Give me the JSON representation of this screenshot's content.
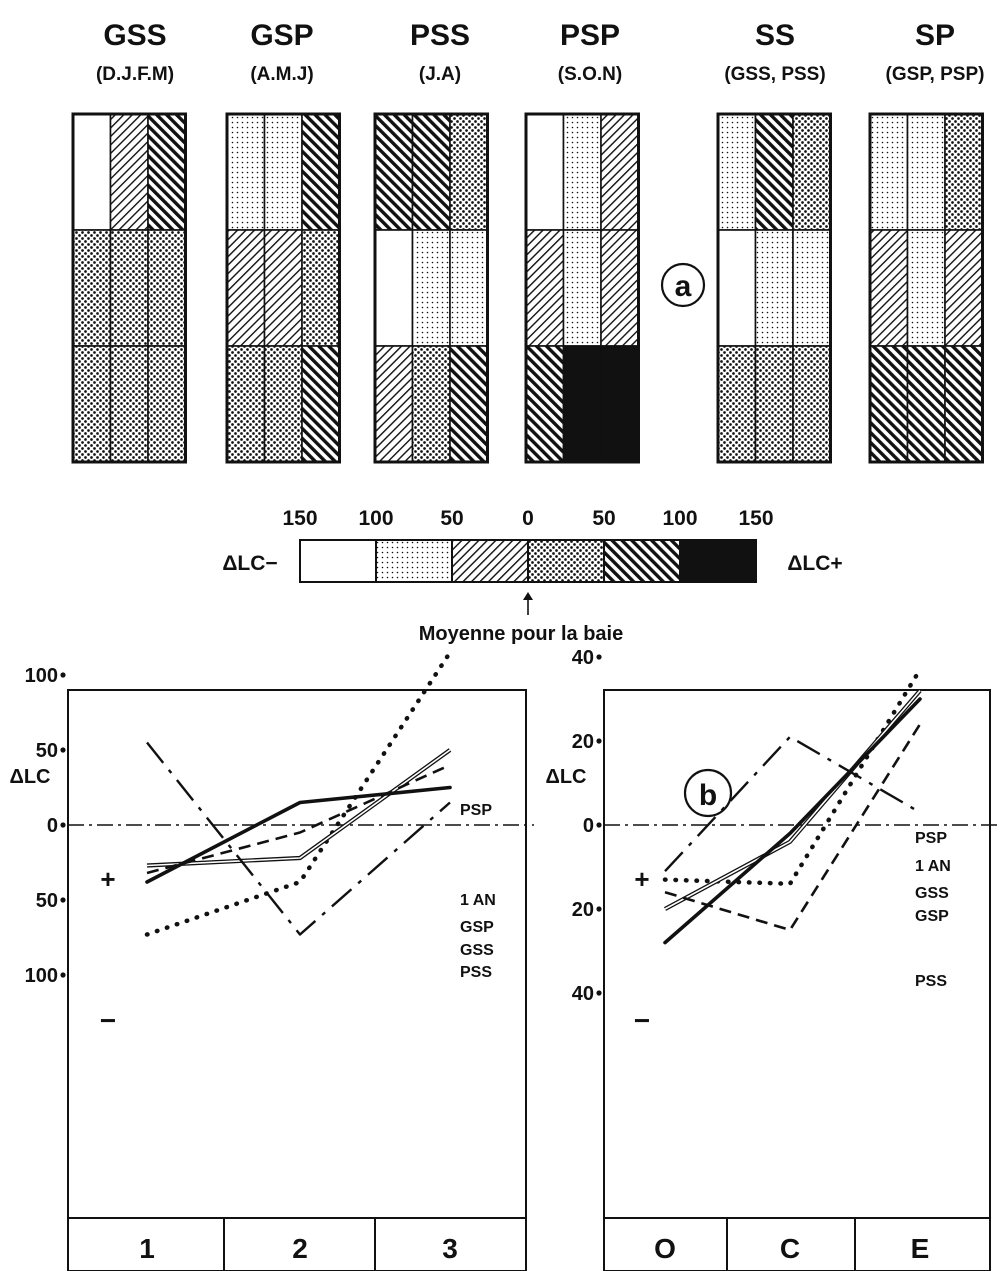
{
  "panel_a": {
    "badge": "a",
    "groups": [
      {
        "name": "GSS",
        "period": "(D.J.F.M)",
        "cells": [
          [
            "white",
            "hatch-light",
            "hatch-dense"
          ],
          [
            "dots-dense",
            "dots-dense",
            "dots-dense"
          ],
          [
            "dots-dense",
            "dots-dense",
            "dots-dense"
          ]
        ]
      },
      {
        "name": "GSP",
        "period": "(A.M.J)",
        "cells": [
          [
            "dots-light",
            "dots-light",
            "hatch-dense"
          ],
          [
            "hatch-light",
            "hatch-light",
            "dots-dense"
          ],
          [
            "dots-dense",
            "dots-dense",
            "hatch-dense"
          ]
        ]
      },
      {
        "name": "PSS",
        "period": "(J.A)",
        "cells": [
          [
            "hatch-dense",
            "hatch-dense",
            "dots-dense"
          ],
          [
            "white",
            "dots-light",
            "dots-light"
          ],
          [
            "hatch-light",
            "dots-dense",
            "hatch-dense"
          ]
        ]
      },
      {
        "name": "PSP",
        "period": "(S.O.N)",
        "cells": [
          [
            "white",
            "dots-light",
            "hatch-light"
          ],
          [
            "hatch-light",
            "dots-light",
            "hatch-light"
          ],
          [
            "hatch-dense",
            "black",
            "black"
          ]
        ]
      },
      {
        "name": "SS",
        "period": "(GSS, PSS)",
        "cells": [
          [
            "dots-light",
            "hatch-dense",
            "dots-dense"
          ],
          [
            "white",
            "dots-light",
            "dots-light"
          ],
          [
            "dots-dense",
            "dots-dense",
            "dots-dense"
          ]
        ]
      },
      {
        "name": "SP",
        "period": "(GSP, PSP)",
        "cells": [
          [
            "dots-light",
            "dots-light",
            "dots-dense"
          ],
          [
            "hatch-light",
            "dots-light",
            "hatch-light"
          ],
          [
            "hatch-dense",
            "hatch-dense",
            "hatch-dense"
          ]
        ]
      }
    ],
    "scale": {
      "left_label": "ΔLC−",
      "right_label": "ΔLC+",
      "ticks": [
        "150",
        "100",
        "50",
        "0",
        "50",
        "100",
        "150"
      ],
      "segments": [
        "white",
        "dots-light",
        "hatch-light",
        "dots-dense",
        "hatch-dense",
        "black"
      ],
      "caption": "Moyenne pour la baie"
    }
  },
  "chart_data": [
    {
      "type": "line",
      "ylabel": "ΔLC",
      "ylim": [
        -150,
        150
      ],
      "yticks": [
        100,
        50,
        0,
        50,
        100
      ],
      "plus": "+",
      "minus": "−",
      "categories": [
        "1",
        "2",
        "3"
      ],
      "series": [
        {
          "name": "PSP",
          "values": [
            -73,
            -38,
            115
          ]
        },
        {
          "name": "1 AN",
          "values": [
            -27,
            -22,
            50
          ]
        },
        {
          "name": "GSP",
          "values": [
            -32,
            -5,
            40
          ]
        },
        {
          "name": "GSS",
          "values": [
            -38,
            15,
            25
          ]
        },
        {
          "name": "PSS",
          "values": [
            55,
            -73,
            15
          ]
        }
      ]
    },
    {
      "type": "line",
      "ylabel": "ΔLC",
      "ylim": [
        -60,
        60
      ],
      "yticks": [
        40,
        20,
        0,
        20,
        40
      ],
      "plus": "+",
      "minus": "−",
      "badge": "b",
      "categories": [
        "O",
        "C",
        "E"
      ],
      "series": [
        {
          "name": "PSP",
          "values": [
            -13,
            -14,
            37
          ]
        },
        {
          "name": "1 AN",
          "values": [
            -20,
            -4,
            32
          ]
        },
        {
          "name": "GSS",
          "values": [
            -28,
            -2,
            30
          ]
        },
        {
          "name": "GSP",
          "values": [
            -16,
            -25,
            24
          ]
        },
        {
          "name": "PSS",
          "values": [
            -11,
            21,
            3
          ]
        }
      ]
    }
  ]
}
